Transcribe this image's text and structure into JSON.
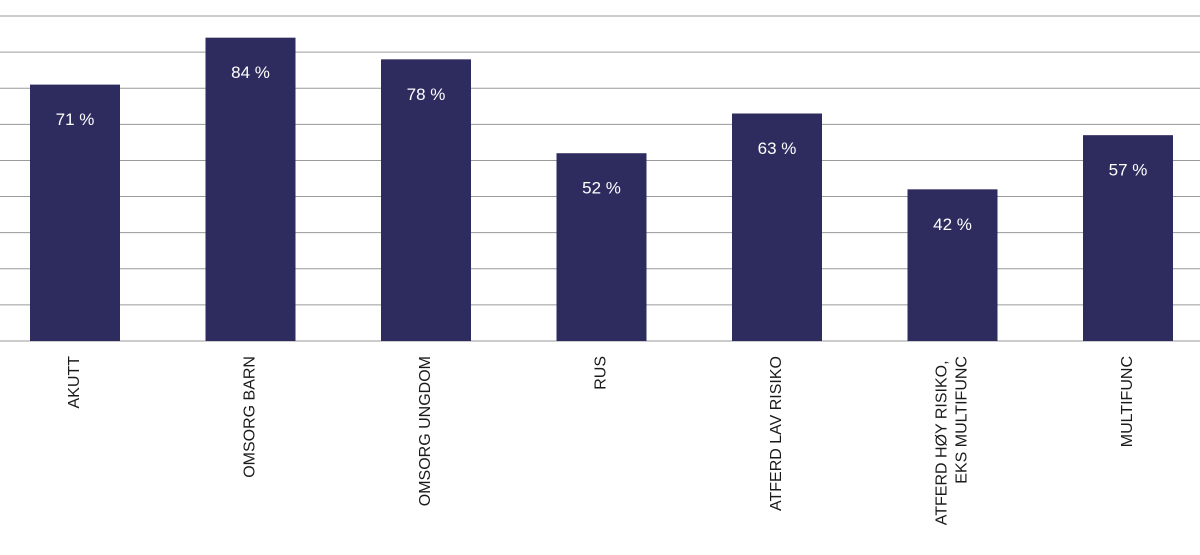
{
  "chart_data": {
    "type": "bar",
    "categories": [
      "AKUTT",
      "OMSORG BARN",
      "OMSORG UNGDOM",
      "RUS",
      "ATFERD LAV RISIKO",
      "ATFERD HØY RISIKO, EKS MULTIFUNC",
      "MULTIFUNC"
    ],
    "values": [
      71,
      84,
      78,
      52,
      63,
      42,
      57
    ],
    "value_labels": [
      "71 %",
      "84 %",
      "78 %",
      "52 %",
      "63 %",
      "42 %",
      "57 %"
    ],
    "color": "#2e2c5e",
    "ylim": [
      0,
      90
    ],
    "yticks": [
      0,
      10,
      20,
      30,
      40,
      50,
      60,
      70,
      80,
      90
    ],
    "grid": true
  }
}
